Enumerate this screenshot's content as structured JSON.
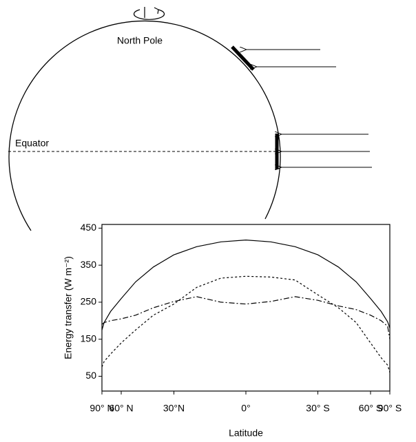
{
  "diagram": {
    "pole_label": "North Pole",
    "equator_label": "Equator"
  },
  "chart_data": {
    "type": "line",
    "x_scale": "sine",
    "y_label": "Energy transfer (W m⁻²)",
    "x_label": "Latitude",
    "x": [
      90,
      80,
      70,
      60,
      50,
      40,
      30,
      20,
      10,
      0,
      -10,
      -20,
      -30,
      -40,
      -50,
      -60,
      -70,
      -80,
      -90
    ],
    "series": [
      {
        "color": "#000000",
        "dash": "solid",
        "values": [
          175,
          195,
          225,
          260,
          305,
          345,
          378,
          400,
          413,
          418,
          413,
          400,
          378,
          345,
          305,
          260,
          225,
          197,
          180
        ]
      },
      {
        "color": "#000000",
        "dash": "dash",
        "values": [
          75,
          90,
          110,
          140,
          175,
          215,
          245,
          290,
          315,
          320,
          318,
          310,
          270,
          235,
          195,
          140,
          100,
          80,
          60
        ]
      },
      {
        "color": "#000000",
        "dash": "dash-dot",
        "values": [
          190,
          195,
          200,
          205,
          215,
          235,
          252,
          265,
          250,
          245,
          252,
          265,
          255,
          240,
          230,
          215,
          200,
          185,
          150
        ]
      }
    ],
    "xlim": [
      90,
      -90
    ],
    "ylim": [
      10,
      460
    ],
    "xticks": [
      {
        "value": 90,
        "label": "90° N"
      },
      {
        "value": 60,
        "label": "60° N"
      },
      {
        "value": 30,
        "label": "30°N"
      },
      {
        "value": 0,
        "label": "0°"
      },
      {
        "value": -30,
        "label": "30° S"
      },
      {
        "value": -60,
        "label": "60° S"
      },
      {
        "value": -90,
        "label": "90° S"
      }
    ],
    "yticks": [
      50,
      150,
      250,
      350,
      450
    ]
  }
}
